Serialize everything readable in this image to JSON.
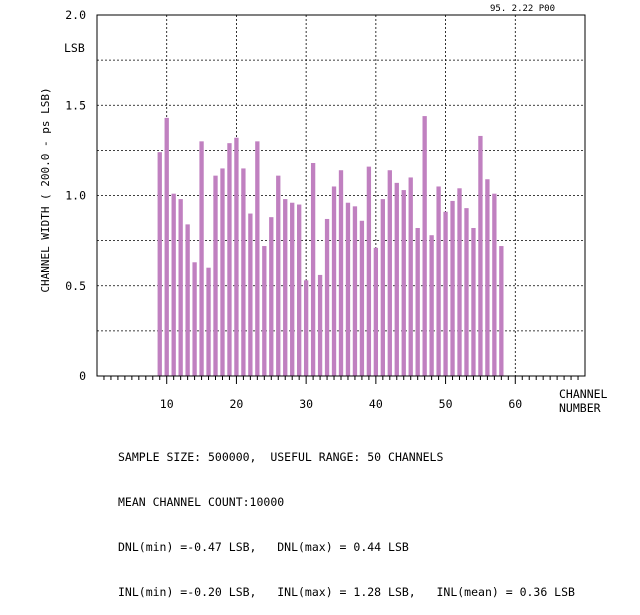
{
  "header_stamp": "95. 2.22  P00",
  "chart_data": {
    "type": "bar",
    "title": "",
    "ylabel": "CHANNEL WIDTH ( 200.0 - ps LSB)",
    "y_unit_label": "LSB",
    "xlabel_line1": "CHANNEL",
    "xlabel_line2": "NUMBER",
    "xlim": [
      0,
      70
    ],
    "ylim": [
      0,
      2.0
    ],
    "x_ticks": [
      10,
      20,
      30,
      40,
      50,
      60
    ],
    "x_tick_labels": [
      "10",
      "20",
      "30",
      "40",
      "50",
      "60"
    ],
    "y_ticks": [
      0,
      0.5,
      1.0,
      1.5,
      2.0
    ],
    "y_tick_labels": [
      "0",
      "0.5",
      "1.0",
      "1.5",
      "2.0"
    ],
    "grid": true,
    "bar_color": "#c080c0",
    "x": [
      9,
      10,
      11,
      12,
      13,
      14,
      15,
      16,
      17,
      18,
      19,
      20,
      21,
      22,
      23,
      24,
      25,
      26,
      27,
      28,
      29,
      30,
      31,
      32,
      33,
      34,
      35,
      36,
      37,
      38,
      39,
      40,
      41,
      42,
      43,
      44,
      45,
      46,
      47,
      48,
      49,
      50,
      51,
      52,
      53,
      54,
      55,
      56,
      57,
      58
    ],
    "values": [
      1.24,
      1.43,
      1.01,
      0.98,
      0.84,
      0.63,
      1.3,
      0.6,
      1.11,
      1.15,
      1.29,
      1.32,
      1.15,
      0.9,
      1.3,
      0.72,
      0.88,
      1.11,
      0.98,
      0.96,
      0.95,
      0.53,
      1.18,
      0.56,
      0.87,
      1.05,
      1.14,
      0.96,
      0.94,
      0.86,
      1.16,
      0.71,
      0.98,
      1.14,
      1.07,
      1.03,
      1.1,
      0.82,
      1.44,
      0.78,
      1.05,
      0.91,
      0.97,
      1.04,
      0.93,
      0.82,
      1.33,
      1.09,
      1.01,
      0.72
    ]
  },
  "footer": {
    "line1": "SAMPLE SIZE: 500000,  USEFUL RANGE: 50 CHANNELS",
    "line2": "MEAN CHANNEL COUNT:10000",
    "line3": "DNL(min) =-0.47 LSB,   DNL(max) = 0.44 LSB",
    "line4": "INL(min) =-0.20 LSB,   INL(max) = 1.28 LSB,   INL(mean) = 0.36 LSB"
  }
}
